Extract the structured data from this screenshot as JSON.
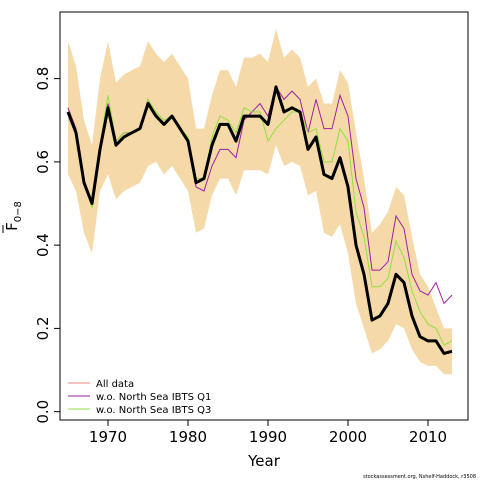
{
  "chart_data": {
    "type": "line",
    "xlabel": "Year",
    "ylabel_main": "F",
    "ylabel_sub": "0−8",
    "xlim": [
      1964,
      2015
    ],
    "ylim": [
      -0.02,
      0.96
    ],
    "xticks": [
      1970,
      1980,
      1990,
      2000,
      2010
    ],
    "yticks": [
      0.0,
      0.2,
      0.4,
      0.6,
      0.8
    ],
    "ytick_labels": [
      "0.0",
      "0.2",
      "0.4",
      "0.6",
      "0.8"
    ],
    "grid": false,
    "legend_position": "bottom-left",
    "credit": "stockassessment.org, Nshelf-Haddock, r3508",
    "x": [
      1965,
      1966,
      1967,
      1968,
      1969,
      1970,
      1971,
      1972,
      1973,
      1974,
      1975,
      1976,
      1977,
      1978,
      1979,
      1980,
      1981,
      1982,
      1983,
      1984,
      1985,
      1986,
      1987,
      1988,
      1989,
      1990,
      1991,
      1992,
      1993,
      1994,
      1995,
      1996,
      1997,
      1998,
      1999,
      2000,
      2001,
      2002,
      2003,
      2004,
      2005,
      2006,
      2007,
      2008,
      2009,
      2010,
      2011,
      2012,
      2013
    ],
    "confidence_band": {
      "color": "#f5d9a8",
      "upper": [
        0.89,
        0.83,
        0.7,
        0.64,
        0.8,
        0.89,
        0.79,
        0.81,
        0.82,
        0.83,
        0.89,
        0.86,
        0.84,
        0.86,
        0.83,
        0.8,
        0.68,
        0.68,
        0.76,
        0.82,
        0.82,
        0.78,
        0.85,
        0.85,
        0.86,
        0.84,
        0.92,
        0.85,
        0.87,
        0.85,
        0.78,
        0.8,
        0.74,
        0.74,
        0.82,
        0.79,
        0.67,
        0.56,
        0.43,
        0.45,
        0.48,
        0.54,
        0.52,
        0.42,
        0.33,
        0.3,
        0.25,
        0.2,
        0.2
      ],
      "lower": [
        0.57,
        0.53,
        0.43,
        0.38,
        0.53,
        0.57,
        0.51,
        0.53,
        0.54,
        0.55,
        0.59,
        0.6,
        0.57,
        0.59,
        0.56,
        0.53,
        0.43,
        0.44,
        0.52,
        0.56,
        0.56,
        0.52,
        0.58,
        0.58,
        0.58,
        0.57,
        0.64,
        0.59,
        0.6,
        0.59,
        0.52,
        0.53,
        0.43,
        0.42,
        0.45,
        0.38,
        0.26,
        0.2,
        0.14,
        0.15,
        0.17,
        0.21,
        0.2,
        0.15,
        0.12,
        0.11,
        0.11,
        0.09,
        0.09
      ]
    },
    "series": [
      {
        "name": "All data",
        "color": "#f08080",
        "values": [
          0.72,
          0.67,
          0.55,
          0.5,
          0.63,
          0.73,
          0.64,
          0.66,
          0.67,
          0.68,
          0.74,
          0.71,
          0.69,
          0.71,
          0.68,
          0.65,
          0.55,
          0.56,
          0.64,
          0.69,
          0.69,
          0.65,
          0.71,
          0.71,
          0.71,
          0.69,
          0.78,
          0.72,
          0.73,
          0.72,
          0.63,
          0.66,
          0.57,
          0.56,
          0.61,
          0.54,
          0.4,
          0.33,
          0.22,
          0.23,
          0.26,
          0.33,
          0.31,
          0.23,
          0.18,
          0.17,
          0.17,
          0.14,
          0.145
        ]
      },
      {
        "name": "w.o. North Sea IBTS Q1",
        "color": "#a020a0",
        "values": [
          0.73,
          0.68,
          0.55,
          0.5,
          0.64,
          0.74,
          0.65,
          0.67,
          0.67,
          0.68,
          0.75,
          0.71,
          0.69,
          0.71,
          0.68,
          0.65,
          0.54,
          0.53,
          0.59,
          0.63,
          0.63,
          0.61,
          0.7,
          0.72,
          0.74,
          0.71,
          0.78,
          0.75,
          0.77,
          0.75,
          0.67,
          0.75,
          0.68,
          0.68,
          0.76,
          0.71,
          0.56,
          0.49,
          0.34,
          0.34,
          0.36,
          0.47,
          0.44,
          0.33,
          0.29,
          0.28,
          0.31,
          0.26,
          0.28
        ]
      },
      {
        "name": "w.o. North Sea IBTS Q3",
        "color": "#90e040",
        "values": [
          0.72,
          0.67,
          0.55,
          0.49,
          0.64,
          0.76,
          0.65,
          0.67,
          0.67,
          0.68,
          0.75,
          0.72,
          0.7,
          0.71,
          0.68,
          0.66,
          0.56,
          0.56,
          0.66,
          0.71,
          0.7,
          0.67,
          0.73,
          0.72,
          0.72,
          0.65,
          0.68,
          0.7,
          0.72,
          0.72,
          0.67,
          0.68,
          0.6,
          0.6,
          0.68,
          0.65,
          0.48,
          0.42,
          0.3,
          0.3,
          0.32,
          0.41,
          0.37,
          0.29,
          0.24,
          0.21,
          0.2,
          0.16,
          0.17
        ]
      }
    ]
  }
}
